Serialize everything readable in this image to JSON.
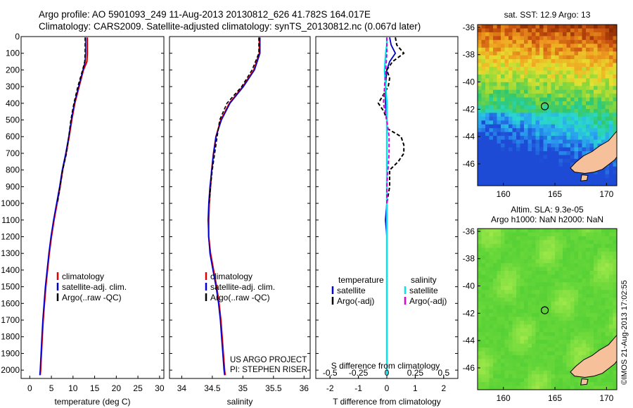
{
  "header": {
    "line1": "Argo profile: AO 5901093_249 11-Aug-2013 20130812_626 41.782S 164.017E",
    "line2": "Climatology: CARS2009. Satellite-adjusted climatology: synTS_20130812.nc (0.067d later)"
  },
  "project": {
    "line1": "US ARGO PROJECT",
    "line2": "PI: STEPHEN RISER"
  },
  "credit": "©IMOS 21-Aug-2013 17:02:55",
  "colors": {
    "climatology": "#e00000",
    "satellite": "#0000cc",
    "argo": "#000000",
    "salinity_satellite": "#00e5ee",
    "salinity_argo": "#dd00dd",
    "land": "#f5c09a"
  },
  "chart_data": [
    {
      "id": "temperature",
      "type": "line",
      "xlabel": "temperature (deg C)",
      "xlim": [
        -2,
        31
      ],
      "ylim": [
        2050,
        0
      ],
      "xticks": [
        0,
        5,
        10,
        15,
        20,
        25,
        30
      ],
      "yticks": [
        0,
        100,
        200,
        300,
        400,
        500,
        600,
        700,
        800,
        900,
        1000,
        1100,
        1200,
        1300,
        1400,
        1500,
        1600,
        1700,
        1800,
        1900,
        2000
      ],
      "legend": [
        "climatology",
        "satellite-adj. clim.",
        "Argo(..raw -QC)"
      ],
      "legend_position": "lower-right",
      "series": [
        {
          "name": "climatology",
          "depth": [
            5,
            50,
            100,
            150,
            200,
            300,
            400,
            500,
            600,
            700,
            800,
            900,
            1000,
            1100,
            1200,
            1300,
            1400,
            1500,
            1600,
            1700,
            1800,
            1900,
            2000,
            2030
          ],
          "values": [
            13.3,
            13.3,
            13.3,
            13.2,
            12.4,
            11.4,
            10.4,
            9.7,
            9.1,
            8.4,
            7.6,
            7.0,
            6.3,
            5.6,
            5.0,
            4.5,
            4.1,
            3.7,
            3.4,
            3.1,
            2.9,
            2.7,
            2.5,
            2.4
          ]
        },
        {
          "name": "satellite-adj. clim.",
          "depth": [
            5,
            50,
            100,
            150,
            200,
            300,
            400,
            500,
            600,
            700,
            800,
            900,
            1000,
            1100,
            1200,
            1300,
            1400,
            1500,
            1600,
            1700,
            1800,
            1900,
            2000,
            2030
          ],
          "values": [
            12.9,
            12.9,
            12.9,
            12.8,
            12.3,
            11.3,
            10.3,
            9.6,
            9.0,
            8.3,
            7.5,
            6.9,
            6.2,
            5.5,
            4.9,
            4.4,
            4.0,
            3.6,
            3.3,
            3.0,
            2.8,
            2.6,
            2.4,
            2.3
          ]
        },
        {
          "name": "Argo(..raw -QC)",
          "depth": [
            5,
            50,
            100,
            150,
            200,
            300,
            400,
            500,
            600,
            700,
            800,
            900,
            1000
          ],
          "values": [
            12.8,
            12.8,
            12.8,
            12.7,
            12.2,
            11.1,
            10.2,
            9.5,
            9.0,
            8.5,
            7.6,
            7.0,
            6.4
          ]
        }
      ]
    },
    {
      "id": "salinity",
      "type": "line",
      "xlabel": "salinity",
      "xlim": [
        33.8,
        36.1
      ],
      "ylim": [
        2050,
        0
      ],
      "xticks": [
        34,
        34.5,
        35,
        35.5,
        36
      ],
      "legend": [
        "climatology",
        "satellite-adj. clim.",
        "Argo(..raw -QC)"
      ],
      "legend_position": "lower-right",
      "series": [
        {
          "name": "climatology",
          "depth": [
            5,
            100,
            200,
            300,
            400,
            500,
            600,
            700,
            800,
            900,
            1000,
            1100,
            1200,
            1300,
            1400,
            1500,
            1600,
            1700,
            1800,
            1900,
            2000,
            2030
          ],
          "values": [
            35.27,
            35.27,
            35.18,
            35.0,
            34.78,
            34.64,
            34.56,
            34.52,
            34.49,
            34.47,
            34.45,
            34.44,
            34.44,
            34.47,
            34.52,
            34.57,
            34.61,
            34.64,
            34.66,
            34.68,
            34.7,
            34.71
          ]
        },
        {
          "name": "satellite-adj. clim.",
          "depth": [
            5,
            100,
            200,
            300,
            400,
            500,
            600,
            700,
            800,
            900,
            1000,
            1100,
            1200,
            1300,
            1400,
            1500,
            1600,
            1700,
            1800,
            1900,
            2000,
            2030
          ],
          "values": [
            35.28,
            35.28,
            35.19,
            35.01,
            34.79,
            34.65,
            34.56,
            34.52,
            34.49,
            34.46,
            34.44,
            34.43,
            34.44,
            34.46,
            34.51,
            34.56,
            34.6,
            34.63,
            34.65,
            34.67,
            34.69,
            34.7
          ]
        },
        {
          "name": "Argo(..raw -QC)",
          "depth": [
            5,
            100,
            200,
            300,
            400,
            500,
            600,
            700,
            800,
            900,
            1000
          ],
          "values": [
            35.26,
            35.26,
            35.15,
            34.98,
            34.74,
            34.62,
            34.58,
            34.54,
            34.5,
            34.47,
            34.45
          ]
        }
      ]
    },
    {
      "id": "difference",
      "type": "line",
      "xlabel": "T difference from climatology",
      "xlabel_top": "S difference from climatology",
      "xlim": [
        -2.5,
        2.5
      ],
      "ylim": [
        2050,
        0
      ],
      "xticks": [
        -2,
        -1,
        0,
        1,
        2
      ],
      "xticks_top": [
        -0.5,
        -0.25,
        0,
        0.25,
        0.5
      ],
      "xticks_top_labels": [
        "-0.5",
        "-0.25",
        "0",
        "0.25",
        "0.5"
      ],
      "legend_temperature_title": "temperature",
      "legend_salinity_title": "salinity",
      "legend": [
        "satellite",
        "Argo(-adj)",
        "satellite",
        "Argo(-adj)"
      ],
      "legend_position": "lower-right",
      "series": [
        {
          "name": "satellite",
          "group": "temperature",
          "depth": [
            5,
            50,
            100,
            150,
            200,
            300,
            400,
            500,
            600,
            800,
            1000,
            1100,
            1200,
            1500,
            2000,
            2030
          ],
          "values": [
            0.1,
            0.15,
            0.3,
            0.1,
            0.0,
            -0.05,
            -0.05,
            0.0,
            0.0,
            0.0,
            0.0,
            -0.05,
            0.0,
            0.0,
            0.0,
            0.0
          ]
        },
        {
          "name": "Argo(-adj)",
          "group": "temperature",
          "depth": [
            5,
            50,
            100,
            150,
            200,
            250,
            300,
            400,
            450,
            500,
            550,
            600,
            650,
            700,
            750,
            800,
            900,
            1000
          ],
          "values": [
            0.3,
            0.35,
            0.6,
            0.2,
            0.0,
            0.1,
            0.05,
            -0.3,
            -0.1,
            0.0,
            0.0,
            0.5,
            0.6,
            0.6,
            0.4,
            0.1,
            0.1,
            0.0
          ]
        },
        {
          "name": "satellite",
          "group": "salinity",
          "depth": [
            5,
            50,
            100,
            200,
            300,
            400,
            500,
            800,
            1000,
            1500,
            2000,
            2030
          ],
          "values": [
            0.0,
            0.0,
            -0.01,
            -0.02,
            -0.01,
            0.0,
            0.0,
            0.0,
            0.0,
            0.0,
            0.0,
            0.0
          ]
        },
        {
          "name": "Argo(-adj)",
          "group": "salinity",
          "depth": [
            5,
            100,
            200,
            300,
            400,
            500,
            600,
            700,
            800,
            900,
            1000
          ],
          "values": [
            0.0,
            0.0,
            -0.01,
            -0.02,
            -0.03,
            0.0,
            0.02,
            0.02,
            0.01,
            0.0,
            0.0
          ]
        }
      ]
    },
    {
      "id": "sst_map",
      "type": "heatmap",
      "title": "sat. SST: 12.9 Argo: 13",
      "xlim": [
        157.5,
        171
      ],
      "ylim": [
        -47.6,
        -35.8
      ],
      "xticks": [
        160,
        165,
        170
      ],
      "yticks": [
        -36,
        -38,
        -40,
        -42,
        -44,
        -46
      ],
      "argo_position": {
        "lon": 164.017,
        "lat": -41.782
      },
      "colorscale": [
        "#1e4bd6",
        "#2aa0f0",
        "#2ad8d0",
        "#2fc870",
        "#8ad83a",
        "#e6e030",
        "#f0a020",
        "#c85010",
        "#8a2a00"
      ]
    },
    {
      "id": "sla_map",
      "type": "heatmap",
      "title": "Altim. SLA: 9.3e-05",
      "subtitle": "Argo h1000: NaN h2000: NaN",
      "xlim": [
        157.5,
        171
      ],
      "ylim": [
        -47.6,
        -35.8
      ],
      "xticks": [
        160,
        165,
        170
      ],
      "yticks": [
        -36,
        -38,
        -40,
        -42,
        -44,
        -46
      ],
      "argo_position": {
        "lon": 164.017,
        "lat": -41.782
      },
      "colorscale": [
        "#3fc832",
        "#6ad83a",
        "#a0e84a",
        "#d0f060"
      ]
    }
  ]
}
